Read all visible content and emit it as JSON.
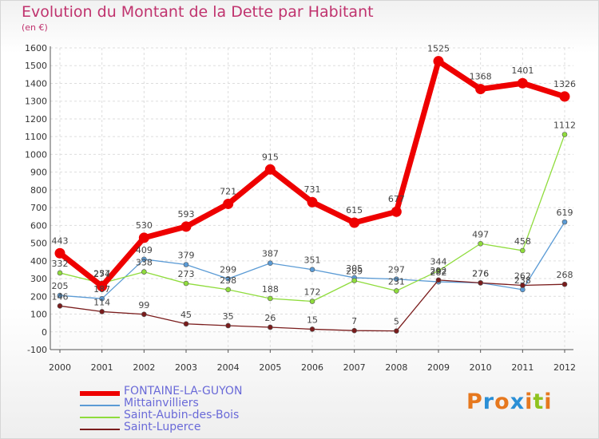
{
  "page": {
    "title": "Evolution du Montant de la Dette par Habitant",
    "subtitle": "(en €)",
    "logo": "Proxiti"
  },
  "colors": {
    "title": "#c0336e",
    "axis": "#555555",
    "grid": "#dddddd",
    "legend_text": "#6a6ad8",
    "logo_letters": [
      "#e6781e",
      "#2a8fd6",
      "#e6781e",
      "#2a8fd6",
      "#e6781e",
      "#8fc31f",
      "#e6781e"
    ]
  },
  "chart_data": {
    "type": "line",
    "title": "Evolution du Montant de la Dette par Habitant",
    "subtitle": "(en €)",
    "xlabel": "",
    "ylabel": "",
    "x": [
      "2000",
      "2001",
      "2002",
      "2003",
      "2004",
      "2005",
      "2006",
      "2007",
      "2008",
      "2009",
      "2010",
      "2011",
      "2012"
    ],
    "ylim": [
      -100,
      1600
    ],
    "yticks": [
      -100,
      0,
      100,
      200,
      300,
      400,
      500,
      600,
      700,
      800,
      900,
      1000,
      1100,
      1200,
      1300,
      1400,
      1500,
      1600
    ],
    "grid": true,
    "legend_position": "bottom-left",
    "series": [
      {
        "name": "FONTAINE-LA-GUYON",
        "color": "#ee0000",
        "emphasis": true,
        "values": [
          443,
          257,
          530,
          593,
          721,
          915,
          731,
          615,
          677,
          1525,
          1368,
          1401,
          1326
        ]
      },
      {
        "name": "Mittainvilliers",
        "color": "#5b9bd5",
        "emphasis": false,
        "values": [
          205,
          187,
          409,
          379,
          299,
          387,
          351,
          305,
          297,
          282,
          276,
          238,
          619
        ]
      },
      {
        "name": "Saint-Aubin-des-Bois",
        "color": "#8fdc3c",
        "emphasis": false,
        "values": [
          332,
          274,
          338,
          273,
          238,
          188,
          172,
          289,
          231,
          344,
          497,
          458,
          1112
        ]
      },
      {
        "name": "Saint-Luperce",
        "color": "#7a1c1c",
        "emphasis": false,
        "values": [
          146,
          114,
          99,
          45,
          35,
          26,
          15,
          7,
          5,
          292,
          276,
          262,
          268
        ]
      }
    ]
  }
}
